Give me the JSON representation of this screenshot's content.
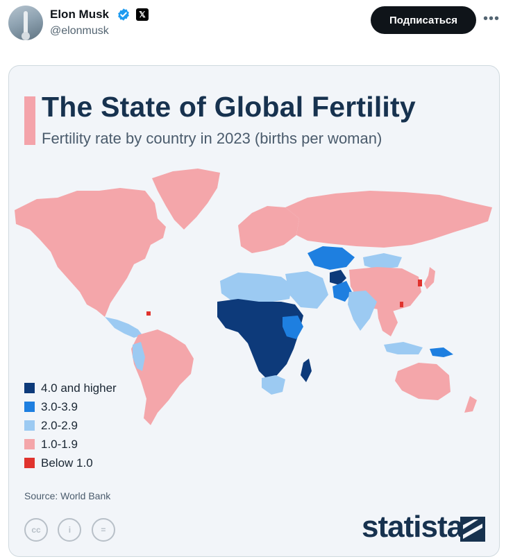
{
  "post": {
    "author_name": "Elon Musk",
    "author_handle": "@elonmusk",
    "follow_label": "Подписаться",
    "more_label": "•••",
    "x_badge": "𝕏"
  },
  "infographic": {
    "title": "The State of Global Fertility",
    "subtitle": "Fertility rate by country in 2023 (births per woman)",
    "source": "Source: World Bank",
    "brand": "statista",
    "license_icons": [
      "cc",
      "i",
      "="
    ],
    "legend": [
      {
        "label": "4.0 and higher",
        "color": "#0d3a7a"
      },
      {
        "label": "3.0-3.9",
        "color": "#1e7fe0"
      },
      {
        "label": "2.0-2.9",
        "color": "#9ccaf2"
      },
      {
        "label": "1.0-1.9",
        "color": "#f4a6aa"
      },
      {
        "label": "Below 1.0",
        "color": "#e0332e"
      }
    ]
  },
  "colors": {
    "accent": "#f4a3aa",
    "title": "#17324f",
    "verified": "#1d9bf0"
  }
}
